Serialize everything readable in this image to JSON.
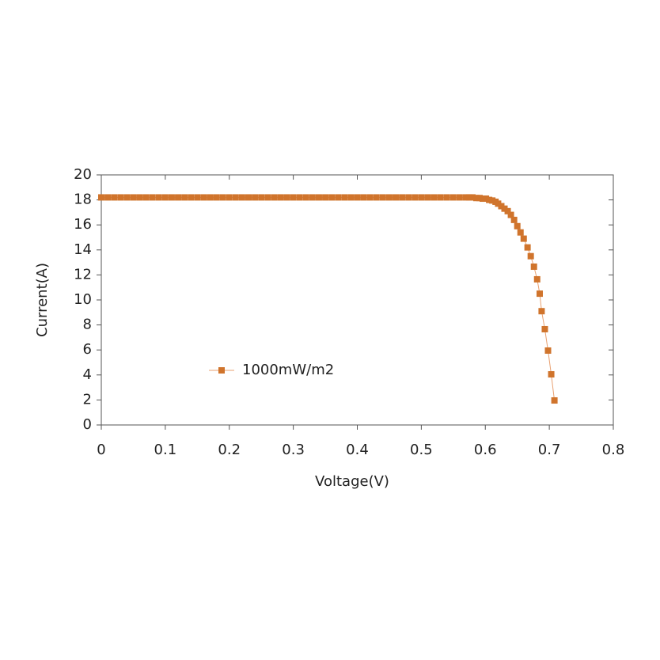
{
  "chart_data": {
    "type": "line",
    "x_label": "Voltage(V)",
    "y_label": "Current(A)",
    "x": [
      0,
      0.01,
      0.02,
      0.03,
      0.04,
      0.05,
      0.06,
      0.07,
      0.08,
      0.09,
      0.1,
      0.11,
      0.12,
      0.13,
      0.14,
      0.15,
      0.16,
      0.17,
      0.18,
      0.19,
      0.2,
      0.21,
      0.22,
      0.23,
      0.24,
      0.25,
      0.26,
      0.27,
      0.28,
      0.29,
      0.3,
      0.31,
      0.32,
      0.33,
      0.34,
      0.35,
      0.36,
      0.37,
      0.38,
      0.39,
      0.4,
      0.41,
      0.42,
      0.43,
      0.44,
      0.45,
      0.46,
      0.47,
      0.48,
      0.49,
      0.5,
      0.51,
      0.52,
      0.53,
      0.54,
      0.55,
      0.56,
      0.57,
      0.575,
      0.58,
      0.586,
      0.591,
      0.596,
      0.601,
      0.606,
      0.611,
      0.616,
      0.62,
      0.625,
      0.63,
      0.635,
      0.64,
      0.645,
      0.65,
      0.655,
      0.66,
      0.666,
      0.671,
      0.676,
      0.681,
      0.685,
      0.688,
      0.693,
      0.698,
      0.703,
      0.708
    ],
    "series": [
      {
        "name": "1000mW/m2",
        "color": "#d0742c",
        "line_color": "#e8a070",
        "values": [
          18.2,
          18.2,
          18.2,
          18.2,
          18.2,
          18.2,
          18.2,
          18.2,
          18.2,
          18.2,
          18.2,
          18.2,
          18.2,
          18.2,
          18.2,
          18.2,
          18.2,
          18.2,
          18.2,
          18.2,
          18.2,
          18.2,
          18.2,
          18.2,
          18.2,
          18.2,
          18.2,
          18.2,
          18.2,
          18.2,
          18.2,
          18.2,
          18.2,
          18.2,
          18.2,
          18.2,
          18.2,
          18.2,
          18.2,
          18.2,
          18.2,
          18.2,
          18.2,
          18.2,
          18.2,
          18.2,
          18.2,
          18.2,
          18.2,
          18.2,
          18.2,
          18.2,
          18.2,
          18.2,
          18.2,
          18.2,
          18.2,
          18.2,
          18.2,
          18.2,
          18.15,
          18.15,
          18.1,
          18.1,
          18.0,
          17.95,
          17.85,
          17.7,
          17.5,
          17.3,
          17.1,
          16.8,
          16.4,
          15.9,
          15.4,
          14.9,
          14.2,
          13.5,
          12.66,
          11.65,
          10.5,
          9.1,
          7.66,
          5.95,
          4.05,
          1.96
        ]
      }
    ],
    "xlim": [
      0,
      0.8
    ],
    "xticks": [
      0,
      0.1,
      0.2,
      0.3,
      0.4,
      0.5,
      0.6,
      0.7,
      0.8
    ],
    "ylim": [
      0,
      20
    ],
    "yticks": [
      0,
      2,
      4,
      6,
      8,
      10,
      12,
      14,
      16,
      18,
      20
    ],
    "grid": false
  }
}
